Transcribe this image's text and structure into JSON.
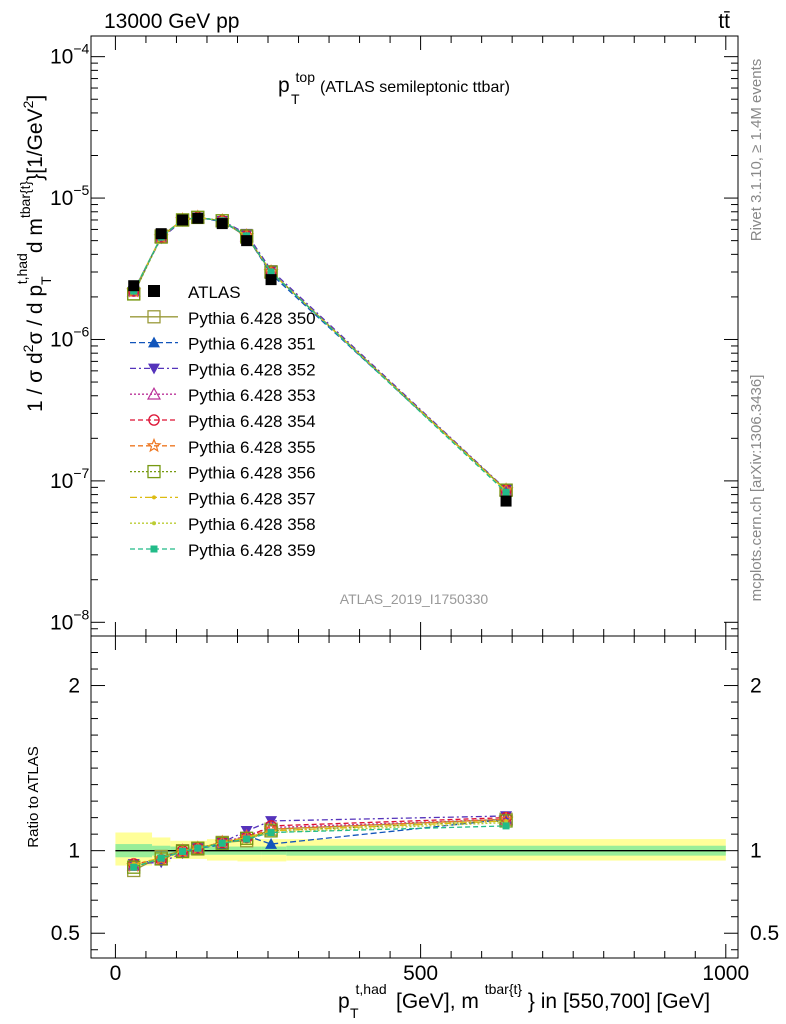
{
  "header": {
    "left": "13000 GeV pp",
    "right": "tt̄"
  },
  "side_labels": {
    "rivet": "Rivet 3.1.10, ≥ 1.4M events",
    "mcplots": "mcplots.cern.ch [arXiv:1306.3436]"
  },
  "watermark": "ATLAS_2019_I1750330",
  "chart_data": [
    {
      "type": "line",
      "panel": "main",
      "title": {
        "main": "p",
        "sup": "top",
        "sub": "T",
        "rest": "(ATLAS semileptonic ttbar)"
      },
      "ylabel": {
        "a": "1 / σ d",
        "a_sup": "2",
        "b": "σ / d p",
        "b_sub": "T",
        "b_sup": "t,had",
        "c": "d m",
        "c_sup": "tbar{t}",
        "d": "}[1/GeV",
        "d_sup": "2",
        "e": "]"
      },
      "yscale": "log",
      "ylim": [
        8e-09,
        0.00014
      ],
      "xlim": [
        -40,
        1020
      ],
      "yticks": [
        {
          "value": 0.0001,
          "label": "10",
          "exp": "−4"
        },
        {
          "value": 1e-05,
          "label": "10",
          "exp": "−5"
        },
        {
          "value": 1e-06,
          "label": "10",
          "exp": "−6"
        },
        {
          "value": 1e-07,
          "label": "10",
          "exp": "−7"
        },
        {
          "value": 1e-08,
          "label": "10",
          "exp": "−8"
        }
      ],
      "x": [
        30,
        75,
        110,
        135,
        175,
        215,
        255,
        640
      ],
      "data": {
        "name": "ATLAS",
        "values": [
          2.4e-06,
          5.6e-06,
          7e-06,
          7.2e-06,
          6.6e-06,
          5e-06,
          2.65e-06,
          7.2e-08
        ]
      },
      "legend_position": "middle-left",
      "series": [
        {
          "name": "Pythia 6.428 350",
          "color": "#9a9a3a",
          "marker": "open-square",
          "dash": "none",
          "values": [
            2.1e-06,
            5.4e-06,
            7e-06,
            7.3e-06,
            6.9e-06,
            5.3e-06,
            3e-06,
            8.6e-08
          ]
        },
        {
          "name": "Pythia 6.428 351",
          "color": "#1155bb",
          "marker": "filled-triangle-up",
          "dash": "6,3",
          "values": [
            2.2e-06,
            5.3e-06,
            7e-06,
            7.3e-06,
            6.8e-06,
            5.4e-06,
            2.9e-06,
            8.6e-08
          ]
        },
        {
          "name": "Pythia 6.428 352",
          "color": "#5533bb",
          "marker": "filled-triangle-down",
          "dash": "6,3,2,3",
          "values": [
            2.2e-06,
            5.2e-06,
            6.9e-06,
            7.3e-06,
            6.9e-06,
            5.6e-06,
            3.1e-06,
            8.7e-08
          ]
        },
        {
          "name": "Pythia 6.428 353",
          "color": "#bb3399",
          "marker": "open-triangle-up",
          "dash": "2,2",
          "values": [
            2.2e-06,
            5.3e-06,
            7e-06,
            7.3e-06,
            6.9e-06,
            5.4e-06,
            3e-06,
            8.6e-08
          ]
        },
        {
          "name": "Pythia 6.428 354",
          "color": "#dd1133",
          "marker": "open-circle",
          "dash": "5,3",
          "values": [
            2.2e-06,
            5.3e-06,
            7e-06,
            7.3e-06,
            6.9e-06,
            5.4e-06,
            3e-06,
            8.6e-08
          ]
        },
        {
          "name": "Pythia 6.428 355",
          "color": "#ee7722",
          "marker": "open-star",
          "dash": "5,3",
          "values": [
            2.2e-06,
            5.3e-06,
            7e-06,
            7.3e-06,
            6.9e-06,
            5.4e-06,
            3e-06,
            8.6e-08
          ]
        },
        {
          "name": "Pythia 6.428 356",
          "color": "#779911",
          "marker": "open-square",
          "dash": "2,2",
          "values": [
            2.1e-06,
            5.3e-06,
            7e-06,
            7.3e-06,
            6.9e-06,
            5.4e-06,
            3e-06,
            8.6e-08
          ]
        },
        {
          "name": "Pythia 6.428 357",
          "color": "#ddbb11",
          "marker": "small-dot",
          "dash": "7,3,2,3",
          "values": [
            2.2e-06,
            5.3e-06,
            7e-06,
            7.3e-06,
            6.9e-06,
            5.4e-06,
            3e-06,
            8.5e-08
          ]
        },
        {
          "name": "Pythia 6.428 358",
          "color": "#bbcc33",
          "marker": "small-dot",
          "dash": "2,2",
          "values": [
            2.2e-06,
            5.3e-06,
            7e-06,
            7.3e-06,
            6.9e-06,
            5.4e-06,
            3e-06,
            8.5e-08
          ]
        },
        {
          "name": "Pythia 6.428 359",
          "color": "#22bb88",
          "marker": "filled-square-small",
          "dash": "5,3",
          "values": [
            2.2e-06,
            5.3e-06,
            7e-06,
            7.3e-06,
            6.9e-06,
            5.4e-06,
            3e-06,
            8.3e-08
          ]
        }
      ]
    },
    {
      "type": "line",
      "panel": "ratio",
      "ylabel": "Ratio to ATLAS",
      "ylim": [
        0.35,
        2.3
      ],
      "xlim": [
        -40,
        1020
      ],
      "yticks": [
        {
          "value": 0.5,
          "label": "0.5"
        },
        {
          "value": 1,
          "label": "1"
        },
        {
          "value": 2,
          "label": "2"
        }
      ],
      "xticks": [
        {
          "value": 0,
          "label": "0"
        },
        {
          "value": 500,
          "label": "500"
        },
        {
          "value": 1000,
          "label": "1000"
        }
      ],
      "xlabel": {
        "a": "p",
        "a_sub": "T",
        "a_sup": "t,had",
        "b": "[GeV], m",
        "b_sup": "tbar{t}",
        "c": "} in [550,700] [GeV]"
      },
      "bands": [
        {
          "x0": 0,
          "x1": 60,
          "green_lo": 0.96,
          "green_hi": 1.04,
          "yellow_lo": 0.91,
          "yellow_hi": 1.11
        },
        {
          "x0": 60,
          "x1": 90,
          "green_lo": 0.97,
          "green_hi": 1.03,
          "yellow_lo": 0.93,
          "yellow_hi": 1.08
        },
        {
          "x0": 90,
          "x1": 120,
          "green_lo": 0.975,
          "green_hi": 1.025,
          "yellow_lo": 0.95,
          "yellow_hi": 1.06
        },
        {
          "x0": 120,
          "x1": 150,
          "green_lo": 0.975,
          "green_hi": 1.025,
          "yellow_lo": 0.95,
          "yellow_hi": 1.06
        },
        {
          "x0": 150,
          "x1": 200,
          "green_lo": 0.975,
          "green_hi": 1.025,
          "yellow_lo": 0.94,
          "yellow_hi": 1.07
        },
        {
          "x0": 200,
          "x1": 240,
          "green_lo": 0.975,
          "green_hi": 1.025,
          "yellow_lo": 0.935,
          "yellow_hi": 1.07
        },
        {
          "x0": 240,
          "x1": 280,
          "green_lo": 0.975,
          "green_hi": 1.025,
          "yellow_lo": 0.935,
          "yellow_hi": 1.07
        },
        {
          "x0": 280,
          "x1": 1000,
          "green_lo": 0.97,
          "green_hi": 1.03,
          "yellow_lo": 0.94,
          "yellow_hi": 1.07
        }
      ],
      "x": [
        30,
        75,
        110,
        135,
        175,
        215,
        255,
        640
      ],
      "series": [
        {
          "name": "Pythia 6.428 350",
          "values": [
            0.88,
            0.965,
            1.0,
            1.01,
            1.05,
            1.06,
            1.13,
            1.19
          ]
        },
        {
          "name": "Pythia 6.428 351",
          "values": [
            0.91,
            0.955,
            0.995,
            1.015,
            1.035,
            1.09,
            1.04,
            1.19
          ]
        },
        {
          "name": "Pythia 6.428 352",
          "values": [
            0.92,
            0.93,
            0.985,
            1.015,
            1.05,
            1.12,
            1.18,
            1.21
          ]
        },
        {
          "name": "Pythia 6.428 353",
          "values": [
            0.91,
            0.945,
            1.0,
            1.015,
            1.05,
            1.09,
            1.14,
            1.19
          ]
        },
        {
          "name": "Pythia 6.428 354",
          "values": [
            0.92,
            0.945,
            1.0,
            1.015,
            1.05,
            1.08,
            1.15,
            1.2
          ]
        },
        {
          "name": "Pythia 6.428 355",
          "values": [
            0.91,
            0.95,
            0.995,
            1.015,
            1.05,
            1.08,
            1.13,
            1.19
          ]
        },
        {
          "name": "Pythia 6.428 356",
          "values": [
            0.9,
            0.95,
            0.995,
            1.015,
            1.045,
            1.075,
            1.12,
            1.18
          ]
        },
        {
          "name": "Pythia 6.428 357",
          "values": [
            0.92,
            0.955,
            1.0,
            1.015,
            1.05,
            1.08,
            1.12,
            1.18
          ]
        },
        {
          "name": "Pythia 6.428 358",
          "values": [
            0.91,
            0.95,
            0.995,
            1.015,
            1.045,
            1.07,
            1.11,
            1.17
          ]
        },
        {
          "name": "Pythia 6.428 359",
          "values": [
            0.9,
            0.955,
            0.995,
            1.015,
            1.045,
            1.07,
            1.11,
            1.15
          ]
        }
      ]
    }
  ]
}
